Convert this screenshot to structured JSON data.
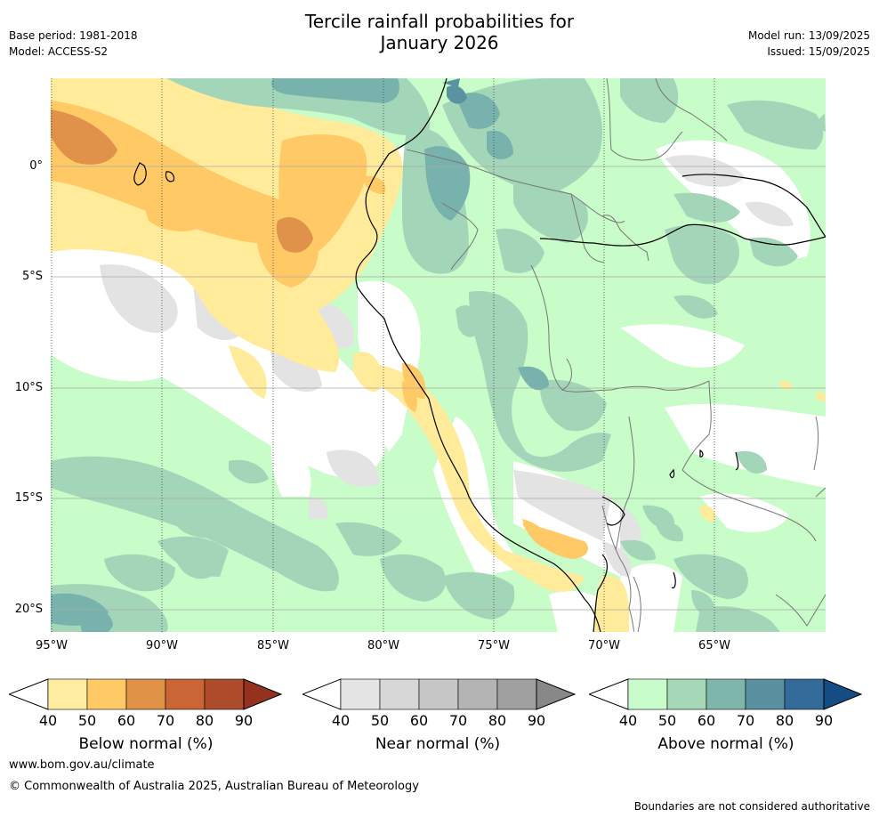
{
  "header": {
    "title_line1": "Tercile rainfall probabilities for",
    "title_line2": "January 2026",
    "base_period": "Base period: 1981-2018",
    "model": "Model: ACCESS-S2",
    "model_run": "Model run: 13/09/2025",
    "issued": "Issued: 15/09/2025"
  },
  "map": {
    "lat_labels": [
      "0°",
      "5°S",
      "10°S",
      "15°S",
      "20°S"
    ],
    "lon_labels": [
      "95°W",
      "90°W",
      "85°W",
      "80°W",
      "75°W",
      "70°W",
      "65°W"
    ],
    "colors": {
      "near_normal": "#e3e3e3",
      "below_50": "#ffeb99",
      "below_60": "#ffc965",
      "below_70": "#e0924a",
      "above_40": "#c8fcc8",
      "above_50": "#a3d6b9",
      "above_60": "#78b2ac",
      "above_70": "#5b92a0"
    }
  },
  "colorbars": [
    {
      "title": "Below normal (%)",
      "ticks": [
        "40",
        "50",
        "60",
        "70",
        "80",
        "90"
      ],
      "colors": [
        "#ffeea1",
        "#ffca65",
        "#e09247",
        "#ca6535",
        "#ad4b2a",
        "#94321f"
      ]
    },
    {
      "title": "Near normal (%)",
      "ticks": [
        "40",
        "50",
        "60",
        "70",
        "80",
        "90"
      ],
      "colors": [
        "#e5e5e5",
        "#d7d7d7",
        "#c6c6c6",
        "#b4b4b4",
        "#a0a0a0",
        "#888888"
      ]
    },
    {
      "title": "Above normal (%)",
      "ticks": [
        "40",
        "50",
        "60",
        "70",
        "80",
        "90"
      ],
      "colors": [
        "#c8fccb",
        "#a4d8b6",
        "#7fb6ab",
        "#5a91a0",
        "#336b9b",
        "#144d83"
      ]
    }
  ],
  "footer": {
    "website": "www.bom.gov.au/climate",
    "copyright": "© Commonwealth of Australia 2025, Australian Bureau of Meteorology",
    "disclaimer": "Boundaries are not considered authoritative"
  }
}
